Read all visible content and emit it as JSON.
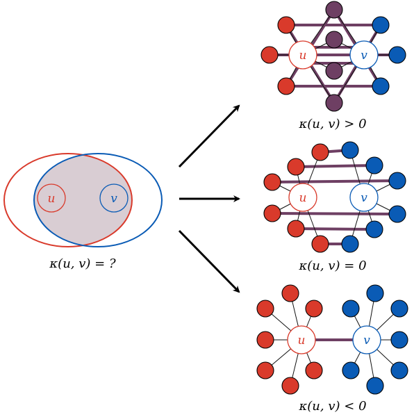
{
  "colors": {
    "red": "#d93a2b",
    "blue": "#0a5bb5",
    "purple": "#6e3f63",
    "overlap": "#d9cdd3",
    "edge": "#111111",
    "arrow": "#000000"
  },
  "labels": {
    "u": "u",
    "v": "v"
  },
  "captions": {
    "question": "κ(u, v) = ?",
    "positive": "κ(u, v) > 0",
    "zero": "κ(u, v) = 0",
    "negative": "κ(u, v) < 0"
  },
  "panels": [
    {
      "id": "positive",
      "shared_neighbors": 4,
      "matched_pairs": 0
    },
    {
      "id": "zero",
      "shared_neighbors": 0,
      "matched_pairs": 6
    },
    {
      "id": "negative",
      "shared_neighbors": 0,
      "matched_pairs": 0
    }
  ]
}
